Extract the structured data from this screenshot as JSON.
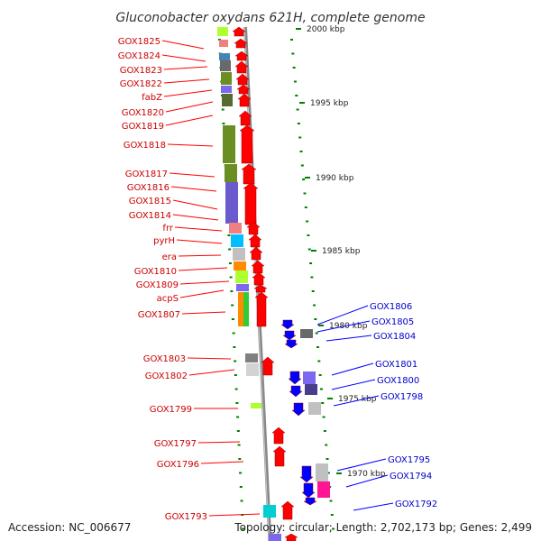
{
  "title": "Gluconobacter oxydans 621H, complete genome",
  "accession": "Accession: NC_006677",
  "summary": "Topology: circular; Length: 2,702,173 bp; Genes: 2,499",
  "colors": {
    "forward": "#ff0000",
    "reverse": "#0000ff",
    "backbone": "#888888",
    "tick": "#008000",
    "label_forward": "#cc0000",
    "label_reverse": "#0000cc"
  },
  "scale_labels": [
    "2000 kbp",
    "1995 kbp",
    "1990 kbp",
    "1985 kbp",
    "1980 kbp",
    "1975 kbp",
    "1970 kbp"
  ],
  "genes_forward": [
    "GOX1825",
    "GOX1824",
    "GOX1823",
    "GOX1822",
    "fabZ",
    "GOX1820",
    "GOX1819",
    "GOX1818",
    "GOX1817",
    "GOX1816",
    "GOX1815",
    "GOX1814",
    "frr",
    "pyrH",
    "era",
    "GOX1810",
    "GOX1809",
    "acpS",
    "GOX1807",
    "GOX1803",
    "GOX1802",
    "GOX1799",
    "GOX1797",
    "GOX1796",
    "GOX1793"
  ],
  "genes_reverse": [
    "GOX1806",
    "GOX1805",
    "GOX1804",
    "GOX1801",
    "GOX1800",
    "GOX1798",
    "GOX1795",
    "GOX1794",
    "GOX1792"
  ]
}
